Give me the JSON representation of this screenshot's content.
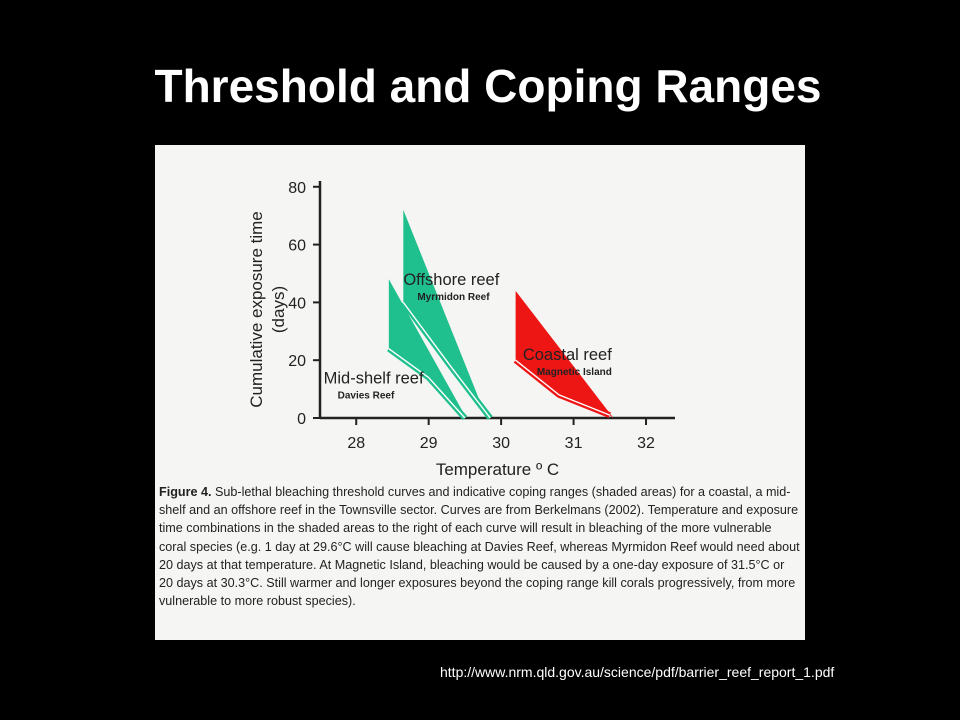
{
  "slide": {
    "title": "Threshold and Coping Ranges",
    "source": "http://www.nrm.qld.gov.au/science/pdf/barrier_reef_report_1.pdf"
  },
  "caption": {
    "label": "Figure 4.",
    "text": " Sub-lethal bleaching threshold curves and indicative coping ranges (shaded areas) for a coastal, a mid-shelf and an offshore reef in the Townsville sector.  Curves are from Berkelmans (2002).  Temperature and exposure time combinations in the shaded areas to the right of each curve will result in bleaching of the more vulnerable coral species (e.g. 1 day at 29.6°C will cause bleaching at Davies Reef, whereas Myrmidon Reef would need about 20 days at that temperature.  At Magnetic Island, bleaching would be caused by a one-day exposure of 31.5°C or 20 days at 30.3°C.  Still warmer and longer exposures beyond the coping range kill corals progressively, from more vulnerable to more robust species)."
  },
  "chart_data": {
    "type": "area",
    "xlabel": "Temperature º C",
    "ylabel": "Cumulative exposure time (days)",
    "xticks": [
      28,
      29,
      30,
      31,
      32
    ],
    "yticks": [
      0,
      20,
      40,
      60,
      80
    ],
    "xlim": [
      27.5,
      32.4
    ],
    "ylim": [
      0,
      82
    ],
    "series": [
      {
        "name": "Offshore reef",
        "sublabel": "Myrmidon Reef",
        "color": "#1fc08e",
        "threshold_curve": [
          [
            28.65,
            40
          ],
          [
            29.3,
            18
          ],
          [
            29.85,
            0
          ]
        ],
        "upper_edge": [
          [
            28.65,
            72
          ],
          [
            29.8,
            0
          ]
        ],
        "label_pos": [
          28.65,
          46
        ]
      },
      {
        "name": "Mid-shelf reef",
        "sublabel": "Davies Reef",
        "color": "#1fc08e",
        "threshold_curve": [
          [
            28.45,
            24
          ],
          [
            29.0,
            14
          ],
          [
            29.5,
            0
          ]
        ],
        "upper_edge": [
          [
            28.45,
            48
          ],
          [
            29.52,
            0
          ]
        ],
        "label_pos": [
          27.55,
          12
        ]
      },
      {
        "name": "Coastal reef",
        "sublabel": "Magnetic Island",
        "color": "#ee1515",
        "threshold_curve": [
          [
            30.2,
            20
          ],
          [
            30.8,
            8
          ],
          [
            31.5,
            1
          ]
        ],
        "upper_edge": [
          [
            30.2,
            44
          ],
          [
            31.55,
            0
          ]
        ],
        "label_pos": [
          30.3,
          20
        ]
      }
    ]
  }
}
